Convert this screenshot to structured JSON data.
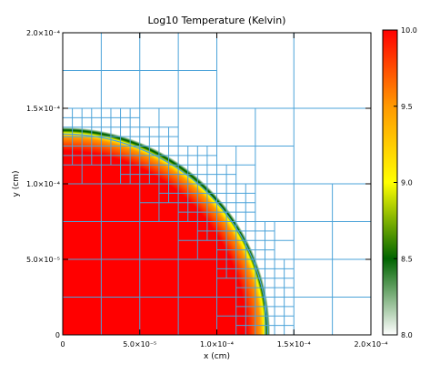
{
  "chart_data": {
    "type": "heatmap",
    "title": "Log10 Temperature (Kelvin)",
    "xlabel": "x (cm)",
    "ylabel": "y (cm)",
    "xlim": [
      0,
      0.0002
    ],
    "ylim": [
      0,
      0.0002
    ],
    "x_ticks": [
      {
        "value": 0,
        "label": "0"
      },
      {
        "value": 5e-05,
        "label": "5.0×10⁻⁵"
      },
      {
        "value": 0.0001,
        "label": "1.0×10⁻⁴"
      },
      {
        "value": 0.00015,
        "label": "1.5×10⁻⁴"
      },
      {
        "value": 0.0002,
        "label": "2.0×10⁻⁴"
      }
    ],
    "y_ticks": [
      {
        "value": 0,
        "label": "0"
      },
      {
        "value": 5e-05,
        "label": "5.0×10⁻⁵"
      },
      {
        "value": 0.0001,
        "label": "1.0×10⁻⁴"
      },
      {
        "value": 0.00015,
        "label": "1.5×10⁻⁴"
      },
      {
        "value": 0.0002,
        "label": "2.0×10⁻⁴"
      }
    ],
    "colorbar": {
      "min": 8.0,
      "max": 10.0,
      "ticks": [
        {
          "value": 8.0,
          "label": "8.0"
        },
        {
          "value": 8.5,
          "label": "8.5"
        },
        {
          "value": 9.0,
          "label": "9.0"
        },
        {
          "value": 9.5,
          "label": "9.5"
        },
        {
          "value": 10.0,
          "label": "10.0"
        }
      ],
      "colors": [
        "#ffffff",
        "#006400",
        "#ffff00",
        "#ff9900",
        "#ff0000"
      ]
    },
    "hot_region": {
      "shape": "quarter-disk",
      "center": [
        0,
        0
      ],
      "radius": 0.000133,
      "interior_value": 10.0,
      "exterior_value": 8.0
    },
    "amr_mesh": {
      "color": "#4ba3d9",
      "domain": [
        0,
        0.0002
      ],
      "max_level": 5
    }
  }
}
